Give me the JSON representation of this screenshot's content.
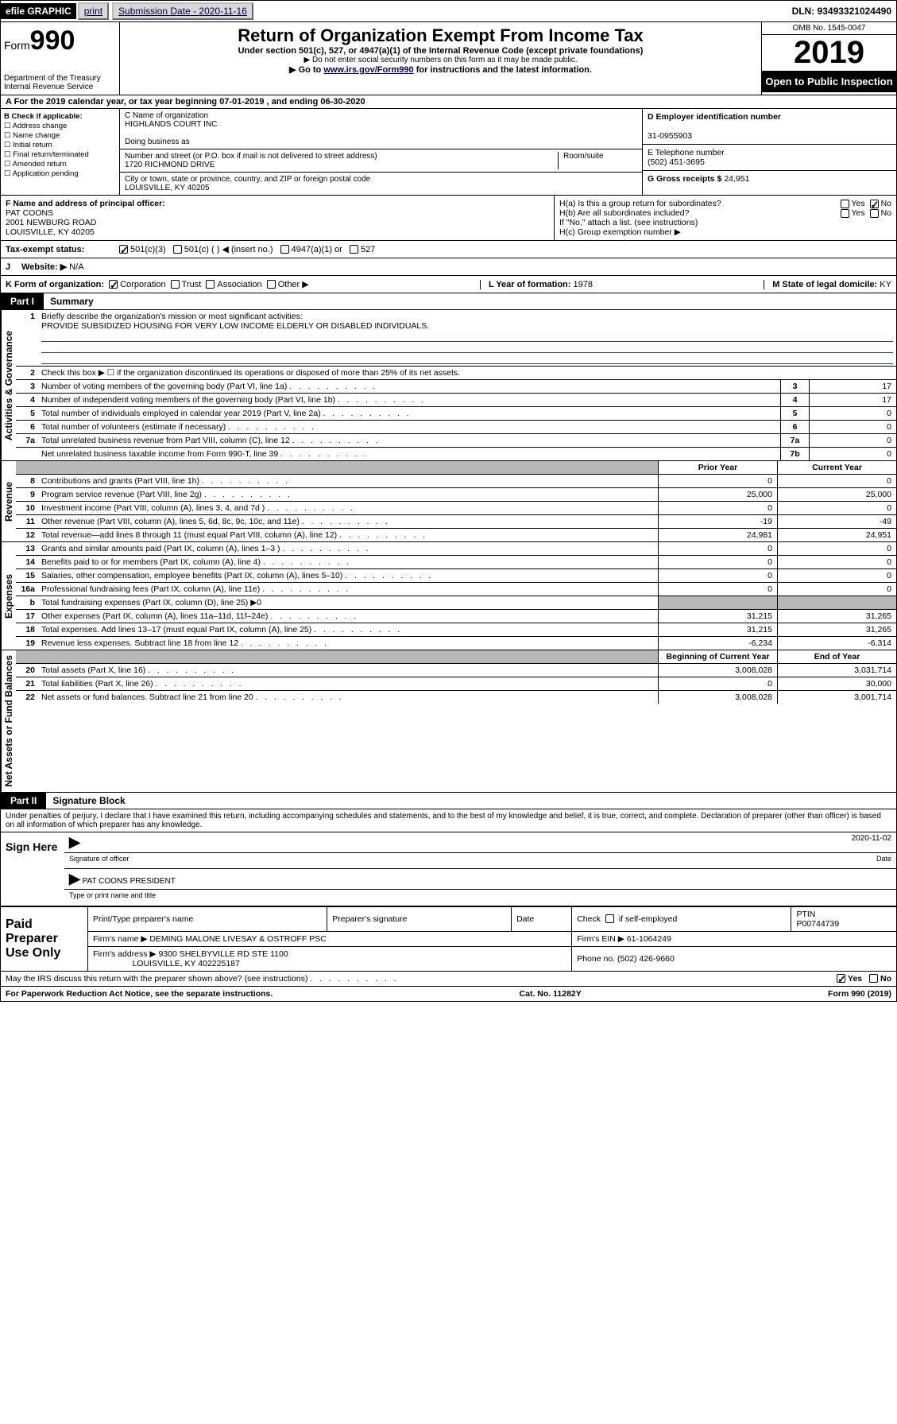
{
  "topbar": {
    "efile": "efile GRAPHIC",
    "print": "print",
    "submission_label": "Submission Date - 2020-11-16",
    "dln": "DLN: 93493321024490"
  },
  "header": {
    "form_prefix": "Form",
    "form_no": "990",
    "dept": "Department of the Treasury\nInternal Revenue Service",
    "title": "Return of Organization Exempt From Income Tax",
    "sub1": "Under section 501(c), 527, or 4947(a)(1) of the Internal Revenue Code (except private foundations)",
    "sub2": "▶ Do not enter social security numbers on this form as it may be made public.",
    "sub3_pre": "▶ Go to ",
    "sub3_link": "www.irs.gov/Form990",
    "sub3_post": " for instructions and the latest information.",
    "omb": "OMB No. 1545-0047",
    "year": "2019",
    "open": "Open to Public Inspection"
  },
  "period": {
    "line": "A   For the 2019 calendar year, or tax year beginning 07-01-2019    , and ending 06-30-2020"
  },
  "B": {
    "label": "B Check if applicable:",
    "opts": [
      "Address change",
      "Name change",
      "Initial return",
      "Final return/terminated",
      "Amended return",
      "Application pending"
    ]
  },
  "C": {
    "name_label": "C Name of organization",
    "name": "HIGHLANDS COURT INC",
    "dba_label": "Doing business as",
    "dba": "",
    "addr_label": "Number and street (or P.O. box if mail is not delivered to street address)",
    "addr": "1720 RICHMOND DRIVE",
    "room_label": "Room/suite",
    "city_label": "City or town, state or province, country, and ZIP or foreign postal code",
    "city": "LOUISVILLE, KY  40205"
  },
  "D": {
    "label": "D Employer identification number",
    "value": "31-0955903"
  },
  "E": {
    "label": "E Telephone number",
    "value": "(502) 451-3695"
  },
  "G": {
    "label": "G Gross receipts $",
    "value": "24,951"
  },
  "F": {
    "label": "F  Name and address of principal officer:",
    "name": "PAT COONS",
    "addr1": "2001 NEWBURG ROAD",
    "addr2": "LOUISVILLE, KY  40205"
  },
  "H": {
    "a": "H(a)  Is this a group return for subordinates?",
    "b": "H(b)  Are all subordinates included?",
    "b_note": "If \"No,\" attach a list. (see instructions)",
    "c": "H(c)  Group exemption number ▶",
    "yes": "Yes",
    "no": "No"
  },
  "tax_status": {
    "label": "Tax-exempt status:",
    "o1": "501(c)(3)",
    "o2": "501(c) (   ) ◀ (insert no.)",
    "o3": "4947(a)(1) or",
    "o4": "527"
  },
  "J": {
    "label": "J",
    "website_label": "Website: ▶",
    "website": "N/A"
  },
  "K": {
    "label": "K Form of organization:",
    "o1": "Corporation",
    "o2": "Trust",
    "o3": "Association",
    "o4": "Other ▶"
  },
  "L": {
    "label": "L Year of formation:",
    "value": "1978"
  },
  "M": {
    "label": "M State of legal domicile:",
    "value": "KY"
  },
  "partI": {
    "tab": "Part I",
    "title": "Summary"
  },
  "summary": {
    "sections": [
      {
        "vlabel": "Activities & Governance",
        "rows": [
          {
            "n": "1",
            "t": "Briefly describe the organization's mission or most significant activities:",
            "mission": "PROVIDE SUBSIDIZED HOUSING FOR VERY LOW INCOME ELDERLY OR DISABLED INDIVIDUALS."
          },
          {
            "n": "2",
            "t": "Check this box ▶ ☐  if the organization discontinued its operations or disposed of more than 25% of its net assets."
          },
          {
            "n": "3",
            "t": "Number of voting members of the governing body (Part VI, line 1a)",
            "box": "3",
            "val": "17"
          },
          {
            "n": "4",
            "t": "Number of independent voting members of the governing body (Part VI, line 1b)",
            "box": "4",
            "val": "17"
          },
          {
            "n": "5",
            "t": "Total number of individuals employed in calendar year 2019 (Part V, line 2a)",
            "box": "5",
            "val": "0"
          },
          {
            "n": "6",
            "t": "Total number of volunteers (estimate if necessary)",
            "box": "6",
            "val": "0"
          },
          {
            "n": "7a",
            "t": "Total unrelated business revenue from Part VIII, column (C), line 12",
            "box": "7a",
            "val": "0"
          },
          {
            "n": "",
            "t": "Net unrelated business taxable income from Form 990-T, line 39",
            "box": "7b",
            "val": "0"
          }
        ]
      },
      {
        "vlabel": "Revenue",
        "header": {
          "c1": "Prior Year",
          "c2": "Current Year"
        },
        "rows": [
          {
            "n": "8",
            "t": "Contributions and grants (Part VIII, line 1h)",
            "c1": "0",
            "c2": "0"
          },
          {
            "n": "9",
            "t": "Program service revenue (Part VIII, line 2g)",
            "c1": "25,000",
            "c2": "25,000"
          },
          {
            "n": "10",
            "t": "Investment income (Part VIII, column (A), lines 3, 4, and 7d )",
            "c1": "0",
            "c2": "0"
          },
          {
            "n": "11",
            "t": "Other revenue (Part VIII, column (A), lines 5, 6d, 8c, 9c, 10c, and 11e)",
            "c1": "-19",
            "c2": "-49"
          },
          {
            "n": "12",
            "t": "Total revenue—add lines 8 through 11 (must equal Part VIII, column (A), line 12)",
            "c1": "24,981",
            "c2": "24,951"
          }
        ]
      },
      {
        "vlabel": "Expenses",
        "rows": [
          {
            "n": "13",
            "t": "Grants and similar amounts paid (Part IX, column (A), lines 1–3 )",
            "c1": "0",
            "c2": "0"
          },
          {
            "n": "14",
            "t": "Benefits paid to or for members (Part IX, column (A), line 4)",
            "c1": "0",
            "c2": "0"
          },
          {
            "n": "15",
            "t": "Salaries, other compensation, employee benefits (Part IX, column (A), lines 5–10)",
            "c1": "0",
            "c2": "0"
          },
          {
            "n": "16a",
            "t": "Professional fundraising fees (Part IX, column (A), line 11e)",
            "c1": "0",
            "c2": "0"
          },
          {
            "n": "b",
            "t": "Total fundraising expenses (Part IX, column (D), line 25) ▶0",
            "shade": true
          },
          {
            "n": "17",
            "t": "Other expenses (Part IX, column (A), lines 11a–11d, 11f–24e)",
            "c1": "31,215",
            "c2": "31,265"
          },
          {
            "n": "18",
            "t": "Total expenses. Add lines 13–17 (must equal Part IX, column (A), line 25)",
            "c1": "31,215",
            "c2": "31,265"
          },
          {
            "n": "19",
            "t": "Revenue less expenses. Subtract line 18 from line 12",
            "c1": "-6,234",
            "c2": "-6,314"
          }
        ]
      },
      {
        "vlabel": "Net Assets or Fund Balances",
        "header": {
          "c1": "Beginning of Current Year",
          "c2": "End of Year"
        },
        "rows": [
          {
            "n": "20",
            "t": "Total assets (Part X, line 16)",
            "c1": "3,008,028",
            "c2": "3,031,714"
          },
          {
            "n": "21",
            "t": "Total liabilities (Part X, line 26)",
            "c1": "0",
            "c2": "30,000"
          },
          {
            "n": "22",
            "t": "Net assets or fund balances. Subtract line 21 from line 20",
            "c1": "3,008,028",
            "c2": "3,001,714"
          }
        ]
      }
    ]
  },
  "partII": {
    "tab": "Part II",
    "title": "Signature Block"
  },
  "sig": {
    "declaration": "Under penalties of perjury, I declare that I have examined this return, including accompanying schedules and statements, and to the best of my knowledge and belief, it is true, correct, and complete. Declaration of preparer (other than officer) is based on all information of which preparer has any knowledge.",
    "sign_here": "Sign Here",
    "sig_officer": "Signature of officer",
    "date_label": "Date",
    "date": "2020-11-02",
    "typed_name": "PAT COONS  PRESIDENT",
    "typed_label": "Type or print name and title"
  },
  "paid": {
    "label": "Paid Preparer Use Only",
    "h1": "Print/Type preparer's name",
    "h2": "Preparer's signature",
    "h3": "Date",
    "h4a": "Check",
    "h4b": "if self-employed",
    "h5a": "PTIN",
    "h5b": "P00744739",
    "firm_name_label": "Firm's name    ▶",
    "firm_name": "DEMING MALONE LIVESAY & OSTROFF PSC",
    "firm_ein_label": "Firm's EIN ▶",
    "firm_ein": "61-1064249",
    "firm_addr_label": "Firm's address ▶",
    "firm_addr1": "9300 SHELBYVILLE RD STE 1100",
    "firm_addr2": "LOUISVILLE, KY  402225187",
    "phone_label": "Phone no.",
    "phone": "(502) 426-9660"
  },
  "footer": {
    "discuss": "May the IRS discuss this return with the preparer shown above? (see instructions)",
    "yes": "Yes",
    "no": "No",
    "pra": "For Paperwork Reduction Act Notice, see the separate instructions.",
    "cat": "Cat. No. 11282Y",
    "form": "Form 990 (2019)"
  }
}
